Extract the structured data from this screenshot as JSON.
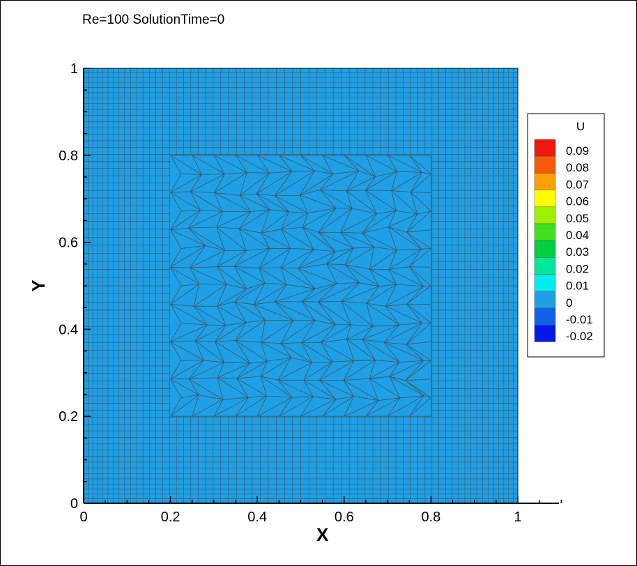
{
  "title": "Re=100 SolutionTime=0",
  "chart_data": {
    "type": "heatmap",
    "variable": "U",
    "field_value": 0,
    "field_color": "#1E9FE6",
    "mesh_color": "#4a4a4a",
    "xlabel": "X",
    "ylabel": "Y",
    "xlim": [
      0,
      1.1
    ],
    "ylim": [
      0,
      1
    ],
    "xticks": [
      "0",
      "0.2",
      "0.4",
      "0.6",
      "0.8",
      "1"
    ],
    "yticks": [
      "0",
      "0.2",
      "0.4",
      "0.6",
      "0.8",
      "1"
    ],
    "grid": false,
    "unstructured_region": {
      "x": [
        0.2,
        0.8
      ],
      "y": [
        0.2,
        0.8
      ]
    },
    "legend": {
      "title": "U",
      "position": "right",
      "levels": [
        {
          "label": "0.09",
          "color": "#F0180E"
        },
        {
          "label": "0.08",
          "color": "#F55A0A"
        },
        {
          "label": "0.07",
          "color": "#FFA000"
        },
        {
          "label": "0.06",
          "color": "#FFFF00"
        },
        {
          "label": "0.05",
          "color": "#9EF000"
        },
        {
          "label": "0.04",
          "color": "#40E020"
        },
        {
          "label": "0.03",
          "color": "#00D040"
        },
        {
          "label": "0.02",
          "color": "#00E69A"
        },
        {
          "label": "0.01",
          "color": "#00EEEE"
        },
        {
          "label": "0",
          "color": "#1E9FE6"
        },
        {
          "label": "-0.01",
          "color": "#1060E8"
        },
        {
          "label": "-0.02",
          "color": "#0018E8"
        }
      ]
    }
  }
}
